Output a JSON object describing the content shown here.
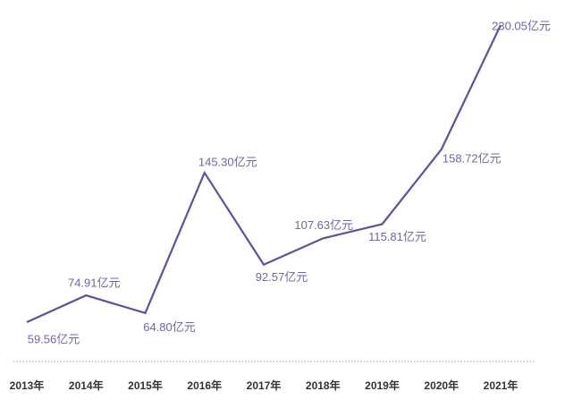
{
  "chart_data": {
    "type": "line",
    "categories": [
      "2013年",
      "2014年",
      "2015年",
      "2016年",
      "2017年",
      "2018年",
      "2019年",
      "2020年",
      "2021年"
    ],
    "values": [
      59.56,
      74.91,
      64.8,
      145.3,
      92.57,
      107.63,
      115.81,
      158.72,
      230.05
    ],
    "value_labels": [
      "59.56亿元",
      "74.91亿元",
      "64.80亿元",
      "145.30亿元",
      "92.57亿元",
      "107.63亿元",
      "115.81亿元",
      "158.72亿元",
      "230.05亿元"
    ],
    "color": "#5754a3"
  }
}
